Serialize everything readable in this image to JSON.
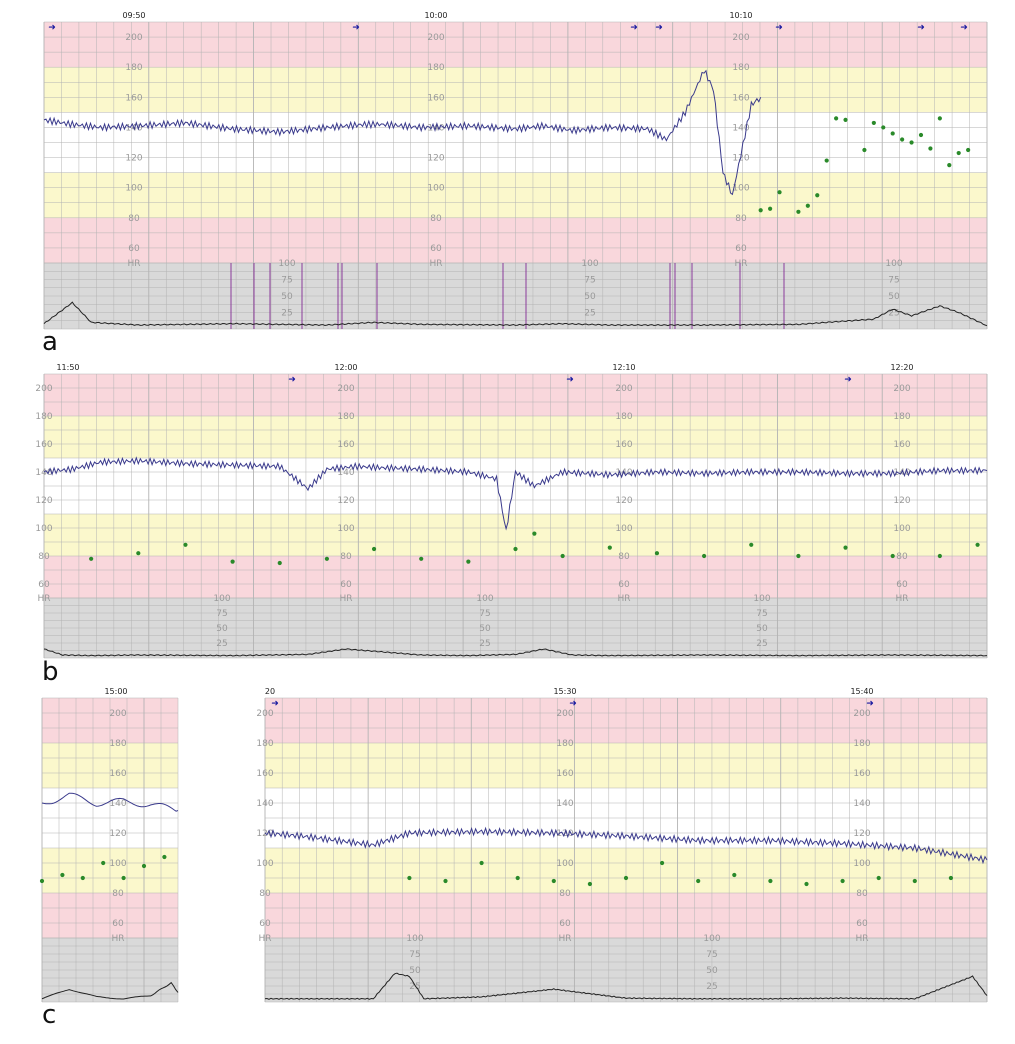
{
  "figure": {
    "panels": [
      {
        "letter": "a"
      },
      {
        "letter": "b"
      },
      {
        "letter": "c"
      }
    ]
  },
  "colors": {
    "red_band": "#f9d7dc",
    "yellow_band": "#fbf8cc",
    "white_band": "#ffffff",
    "gray_band": "#d9d9d9",
    "grid": "#b3b3b3",
    "fhr_trace": "#3a3a8c",
    "maternal_dots": "#2a8a2a",
    "toco_trace": "#222222",
    "artifact_lines": "#8b3a9a",
    "event_marker": "#1a1aa0",
    "scale_text": "#9a9a9a"
  },
  "chart_data": [
    {
      "type": "line",
      "panel": "a",
      "x_unit": "time (hh:mm)",
      "time_labels": [
        "09:50",
        "10:00",
        "10:10"
      ],
      "fhr_scale": [
        200,
        180,
        160,
        140,
        120,
        100,
        80,
        60
      ],
      "fhr_axis_label": "HR",
      "toco_scale": [
        100,
        75,
        50,
        25
      ],
      "fhr_ylim": [
        50,
        210
      ],
      "toco_ylim": [
        0,
        100
      ],
      "series": [
        {
          "key": "fhr",
          "x": [
            0,
            0.03,
            0.06,
            0.1,
            0.15,
            0.2,
            0.25,
            0.3,
            0.34,
            0.36,
            0.4,
            0.45,
            0.5,
            0.53,
            0.56,
            0.6,
            0.64,
            0.66,
            0.68,
            0.7,
            0.71,
            0.72,
            0.73,
            0.75,
            0.76
          ],
          "y": [
            145,
            142,
            140,
            141,
            143,
            139,
            137,
            140,
            142,
            142,
            140,
            141,
            139,
            141,
            138,
            140,
            139,
            132,
            150,
            178,
            165,
            110,
            95,
            155,
            160
          ]
        },
        {
          "key": "maternal_hr",
          "x": [
            0.76,
            0.77,
            0.78,
            0.8,
            0.81,
            0.82,
            0.83,
            0.84,
            0.85,
            0.87,
            0.88,
            0.89,
            0.9,
            0.91,
            0.92,
            0.93,
            0.94,
            0.95,
            0.96,
            0.97,
            0.98
          ],
          "y": [
            85,
            86,
            97,
            84,
            88,
            95,
            118,
            146,
            145,
            125,
            143,
            140,
            136,
            132,
            130,
            135,
            126,
            146,
            115,
            123,
            125
          ]
        },
        {
          "key": "toco",
          "x": [
            0,
            0.03,
            0.05,
            0.1,
            0.2,
            0.3,
            0.35,
            0.4,
            0.5,
            0.55,
            0.6,
            0.7,
            0.8,
            0.88,
            0.9,
            0.92,
            0.95,
            0.97,
            1
          ],
          "y": [
            8,
            40,
            10,
            6,
            8,
            6,
            10,
            7,
            6,
            8,
            6,
            6,
            7,
            15,
            30,
            20,
            35,
            25,
            5
          ]
        }
      ]
    },
    {
      "type": "line",
      "panel": "b",
      "x_unit": "time (hh:mm)",
      "time_labels": [
        "11:50",
        "12:00",
        "12:10",
        "12:20"
      ],
      "fhr_scale": [
        200,
        180,
        160,
        140,
        120,
        100,
        80,
        60
      ],
      "fhr_axis_label": "HR",
      "toco_scale": [
        100,
        75,
        50,
        25
      ],
      "fhr_ylim": [
        50,
        210
      ],
      "toco_ylim": [
        0,
        100
      ],
      "series": [
        {
          "key": "fhr",
          "x": [
            0,
            0.03,
            0.06,
            0.1,
            0.15,
            0.2,
            0.25,
            0.28,
            0.3,
            0.33,
            0.36,
            0.4,
            0.45,
            0.48,
            0.49,
            0.5,
            0.52,
            0.55,
            0.6,
            0.65,
            0.7,
            0.75,
            0.8,
            0.85,
            0.9,
            0.95,
            1
          ],
          "y": [
            140,
            142,
            147,
            148,
            146,
            145,
            144,
            128,
            142,
            144,
            143,
            142,
            140,
            135,
            98,
            140,
            130,
            140,
            138,
            140,
            139,
            140,
            140,
            139,
            139,
            141,
            141
          ]
        },
        {
          "key": "maternal_hr",
          "x": [
            0.05,
            0.1,
            0.15,
            0.2,
            0.25,
            0.3,
            0.35,
            0.4,
            0.45,
            0.5,
            0.52,
            0.55,
            0.6,
            0.65,
            0.7,
            0.75,
            0.8,
            0.85,
            0.9,
            0.95,
            0.99
          ],
          "y": [
            78,
            82,
            88,
            76,
            75,
            78,
            85,
            78,
            76,
            85,
            96,
            80,
            86,
            82,
            80,
            88,
            80,
            86,
            80,
            80,
            88
          ]
        },
        {
          "key": "toco",
          "x": [
            0,
            0.02,
            0.05,
            0.1,
            0.2,
            0.28,
            0.32,
            0.4,
            0.45,
            0.5,
            0.53,
            0.56,
            0.6,
            0.7,
            0.8,
            0.9,
            1
          ],
          "y": [
            15,
            5,
            4,
            5,
            4,
            6,
            15,
            5,
            4,
            6,
            15,
            5,
            4,
            5,
            4,
            5,
            4
          ]
        }
      ]
    },
    {
      "type": "line",
      "panel": "c",
      "x_unit": "time (hh:mm)",
      "time_labels_left": [
        "15:00"
      ],
      "time_labels_right": [
        "20",
        "15:30",
        "15:40"
      ],
      "fhr_scale": [
        200,
        180,
        160,
        140,
        120,
        100,
        80,
        60
      ],
      "fhr_axis_label": "HR",
      "toco_scale": [
        100,
        75,
        50,
        25
      ],
      "fhr_ylim": [
        50,
        210
      ],
      "toco_ylim": [
        0,
        100
      ],
      "series": [
        {
          "key": "fhr_left",
          "x": [
            0,
            0.2,
            0.4,
            0.6,
            0.8,
            1
          ],
          "y": [
            140,
            145,
            140,
            141,
            139,
            135
          ]
        },
        {
          "key": "maternal_hr_left",
          "x": [
            0,
            0.15,
            0.3,
            0.45,
            0.6,
            0.75,
            0.9
          ],
          "y": [
            88,
            92,
            90,
            100,
            90,
            98,
            104
          ]
        },
        {
          "key": "toco_left",
          "x": [
            0,
            0.2,
            0.4,
            0.6,
            0.8,
            0.95,
            1
          ],
          "y": [
            5,
            20,
            8,
            5,
            10,
            30,
            15
          ]
        },
        {
          "key": "fhr_right",
          "x": [
            0,
            0.05,
            0.1,
            0.15,
            0.2,
            0.3,
            0.4,
            0.5,
            0.6,
            0.7,
            0.8,
            0.9,
            1
          ],
          "y": [
            120,
            118,
            115,
            112,
            120,
            121,
            120,
            118,
            115,
            115,
            113,
            110,
            102
          ]
        },
        {
          "key": "maternal_hr_right",
          "x": [
            0.2,
            0.25,
            0.3,
            0.35,
            0.4,
            0.45,
            0.5,
            0.55,
            0.6,
            0.65,
            0.7,
            0.75,
            0.8,
            0.85,
            0.9,
            0.95
          ],
          "y": [
            90,
            88,
            100,
            90,
            88,
            86,
            90,
            100,
            88,
            92,
            88,
            86,
            88,
            90,
            88,
            90
          ]
        },
        {
          "key": "toco_right",
          "x": [
            0,
            0.15,
            0.18,
            0.2,
            0.22,
            0.3,
            0.4,
            0.5,
            0.6,
            0.7,
            0.8,
            0.9,
            0.98,
            1
          ],
          "y": [
            5,
            5,
            45,
            40,
            5,
            8,
            20,
            6,
            5,
            5,
            6,
            5,
            40,
            10
          ]
        }
      ]
    }
  ]
}
